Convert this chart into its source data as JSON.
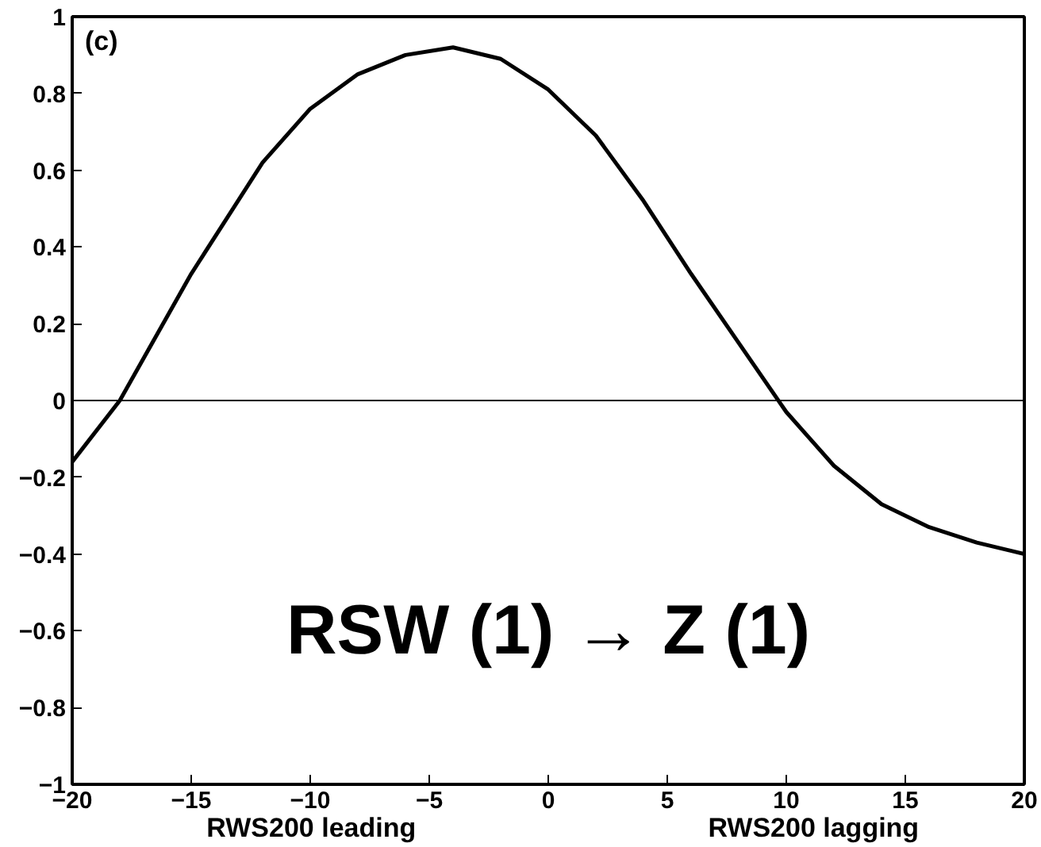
{
  "chart_data": {
    "type": "line",
    "x": [
      -20,
      -18,
      -15,
      -12,
      -10,
      -8,
      -6,
      -4,
      -2,
      0,
      2,
      4,
      6,
      8,
      10,
      12,
      14,
      16,
      18,
      20
    ],
    "values": [
      -0.16,
      0.0,
      0.33,
      0.62,
      0.76,
      0.85,
      0.9,
      0.92,
      0.89,
      0.81,
      0.69,
      0.52,
      0.33,
      0.15,
      -0.03,
      -0.17,
      -0.27,
      -0.33,
      -0.37,
      -0.4
    ],
    "color": "#000000",
    "xlim": [
      -20,
      20
    ],
    "ylim": [
      -1,
      1
    ],
    "xticks": [
      -20,
      -15,
      -10,
      -5,
      0,
      5,
      10,
      15,
      20
    ],
    "yticks": [
      -1,
      -0.8,
      -0.6,
      -0.4,
      -0.2,
      0,
      0.2,
      0.4,
      0.6,
      0.8,
      1
    ],
    "ref_lines": [
      {
        "axis": "y",
        "value": 0,
        "color": "#000000"
      }
    ],
    "annotations": [
      "(c)",
      "RSW (1) → Z (1)",
      "RWS200  leading",
      "RWS200  lagging"
    ],
    "grid": false,
    "marker": "none",
    "line_style": "solid"
  }
}
